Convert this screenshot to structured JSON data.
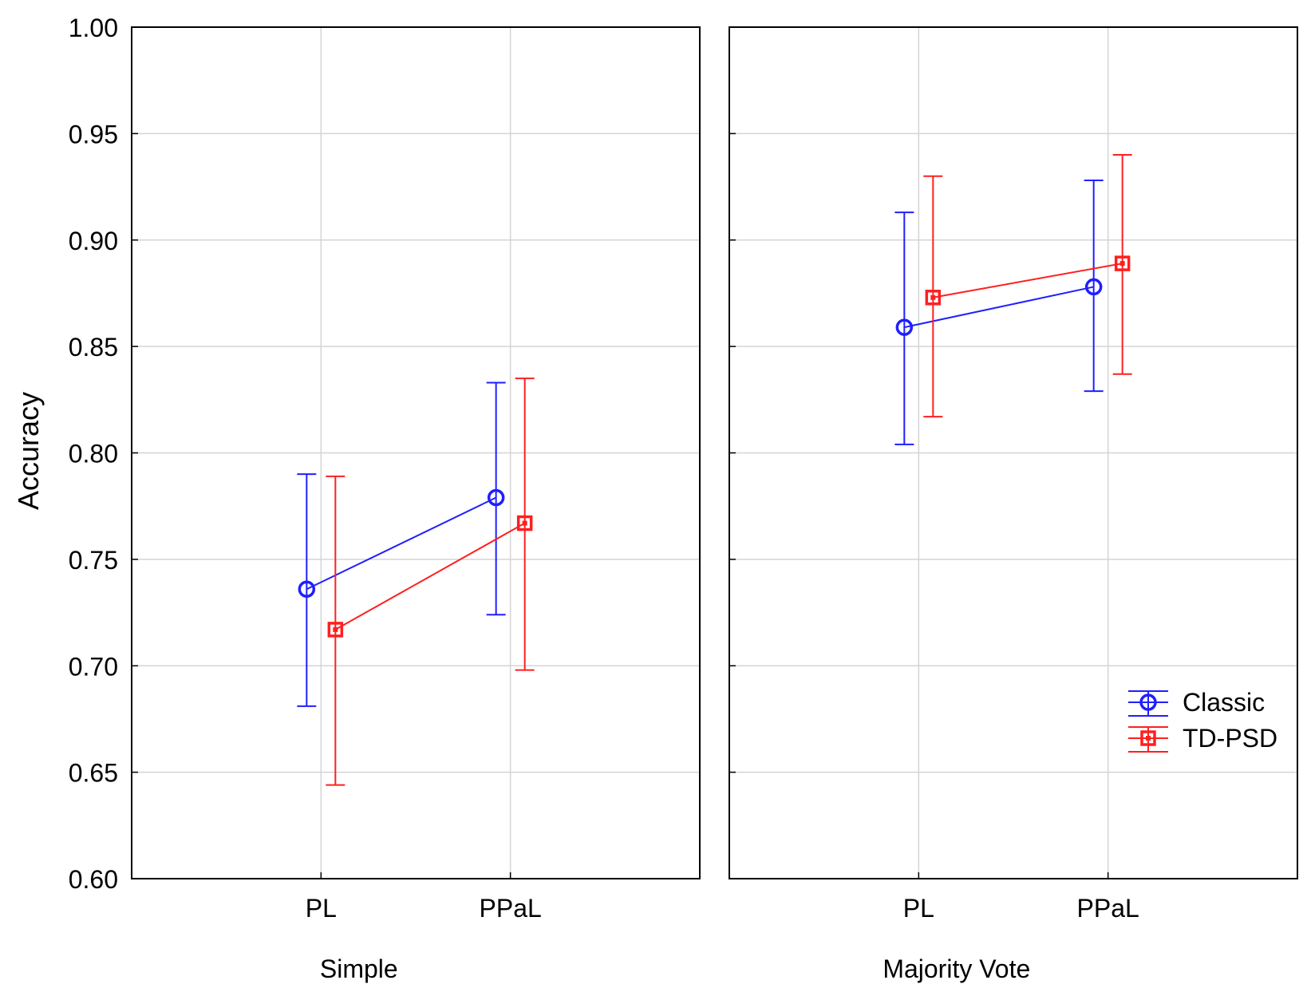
{
  "chart_data": {
    "type": "line",
    "ylabel": "Accuracy",
    "ylim": [
      0.6,
      1.0
    ],
    "yticks": [
      0.6,
      0.65,
      0.7,
      0.75,
      0.8,
      0.85,
      0.9,
      0.95,
      1.0
    ],
    "ytick_labels": [
      "0.60",
      "0.65",
      "0.70",
      "0.75",
      "0.80",
      "0.85",
      "0.90",
      "0.95",
      "1.00"
    ],
    "categories": [
      "PL",
      "PPaL"
    ],
    "grid": true,
    "legend_position": "bottom-right",
    "colors": {
      "Classic": "#1f1fff",
      "TD-PSD": "#ff1f1f",
      "grid": "#d4d4d4"
    },
    "panels": [
      {
        "xlabel": "Simple",
        "series": [
          {
            "name": "Classic",
            "marker": "circle",
            "values": [
              0.736,
              0.779
            ],
            "lower": [
              0.681,
              0.724
            ],
            "upper": [
              0.79,
              0.833
            ]
          },
          {
            "name": "TD-PSD",
            "marker": "square",
            "values": [
              0.717,
              0.767
            ],
            "lower": [
              0.644,
              0.698
            ],
            "upper": [
              0.789,
              0.835
            ]
          }
        ]
      },
      {
        "xlabel": "Majority Vote",
        "series": [
          {
            "name": "Classic",
            "marker": "circle",
            "values": [
              0.859,
              0.878
            ],
            "lower": [
              0.804,
              0.829
            ],
            "upper": [
              0.913,
              0.928
            ]
          },
          {
            "name": "TD-PSD",
            "marker": "square",
            "values": [
              0.873,
              0.889
            ],
            "lower": [
              0.817,
              0.837
            ],
            "upper": [
              0.93,
              0.94
            ]
          }
        ]
      }
    ],
    "legend": [
      "Classic",
      "TD-PSD"
    ]
  }
}
